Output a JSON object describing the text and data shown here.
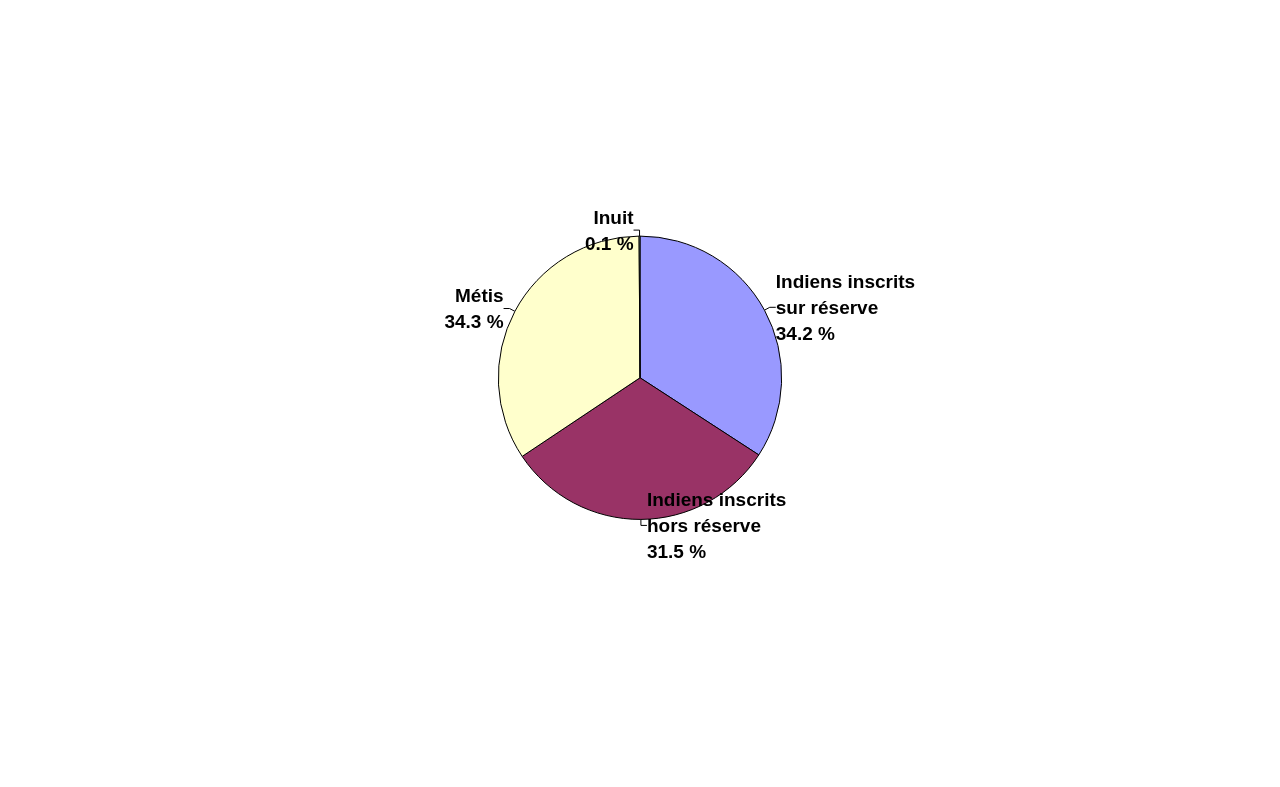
{
  "chart_data": {
    "type": "pie",
    "categories": [
      "Indiens inscrits sur réserve",
      "Indiens inscrits hors réserve",
      "Métis",
      "Inuit"
    ],
    "values": [
      34.2,
      31.5,
      34.3,
      0.1
    ],
    "colors": [
      "#9999ff",
      "#993366",
      "#ffffcc",
      "#ccffff"
    ],
    "value_labels": [
      "34.2 %",
      "31.5 %",
      "34.3 %",
      "0.1 %"
    ],
    "legend": false
  }
}
